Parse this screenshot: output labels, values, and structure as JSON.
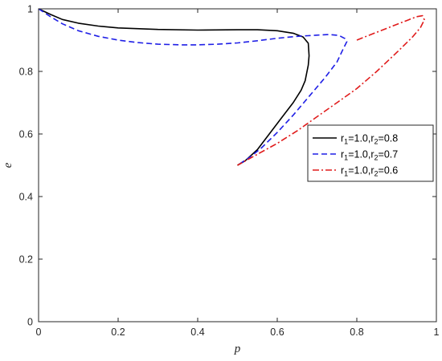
{
  "chart_data": {
    "type": "line",
    "xlabel": "p",
    "ylabel": "e",
    "xlim": [
      0,
      1
    ],
    "ylim": [
      0,
      1
    ],
    "xticks": [
      0,
      0.2,
      0.4,
      0.6,
      0.8,
      1
    ],
    "xtick_labels": [
      "0",
      "0.2",
      "0.4",
      "0.6",
      "0.8",
      "1"
    ],
    "yticks": [
      0,
      0.2,
      0.4,
      0.6,
      0.8,
      1
    ],
    "ytick_labels": [
      "0",
      "0.2",
      "0.4",
      "0.6",
      "0.8",
      "1"
    ],
    "grid": false,
    "legend_position": "right",
    "series": [
      {
        "name": "r1=1.0,r2=0.8",
        "legend": {
          "r": "r",
          "r1_sub": "1",
          "r1_val": "=1.0,",
          "r2_sub": "2",
          "r2_val": "=0.8"
        },
        "color": "#000000",
        "dash": "solid",
        "points": [
          [
            0,
            1
          ],
          [
            0.03,
            0.982
          ],
          [
            0.06,
            0.966
          ],
          [
            0.1,
            0.954
          ],
          [
            0.15,
            0.945
          ],
          [
            0.2,
            0.939
          ],
          [
            0.3,
            0.934
          ],
          [
            0.4,
            0.932
          ],
          [
            0.5,
            0.933
          ],
          [
            0.55,
            0.933
          ],
          [
            0.6,
            0.93
          ],
          [
            0.64,
            0.922
          ],
          [
            0.665,
            0.91
          ],
          [
            0.678,
            0.89
          ],
          [
            0.68,
            0.85
          ],
          [
            0.678,
            0.82
          ],
          [
            0.67,
            0.77
          ],
          [
            0.66,
            0.74
          ],
          [
            0.64,
            0.7
          ],
          [
            0.61,
            0.65
          ],
          [
            0.58,
            0.6
          ],
          [
            0.55,
            0.55
          ],
          [
            0.52,
            0.515
          ],
          [
            0.5,
            0.5
          ]
        ]
      },
      {
        "name": "r1=1.0,r2=0.7",
        "legend": {
          "r": "r",
          "r1_sub": "1",
          "r1_val": "=1.0,",
          "r2_sub": "2",
          "r2_val": "=0.7"
        },
        "color": "#1f1fe6",
        "dash": "7 4",
        "points": [
          [
            0,
            1
          ],
          [
            0.03,
            0.975
          ],
          [
            0.06,
            0.952
          ],
          [
            0.1,
            0.93
          ],
          [
            0.15,
            0.912
          ],
          [
            0.2,
            0.9
          ],
          [
            0.25,
            0.892
          ],
          [
            0.3,
            0.887
          ],
          [
            0.36,
            0.885
          ],
          [
            0.4,
            0.885
          ],
          [
            0.45,
            0.887
          ],
          [
            0.5,
            0.891
          ],
          [
            0.55,
            0.898
          ],
          [
            0.6,
            0.906
          ],
          [
            0.65,
            0.912
          ],
          [
            0.7,
            0.916
          ],
          [
            0.73,
            0.918
          ],
          [
            0.755,
            0.915
          ],
          [
            0.77,
            0.905
          ],
          [
            0.775,
            0.895
          ],
          [
            0.765,
            0.87
          ],
          [
            0.75,
            0.83
          ],
          [
            0.72,
            0.78
          ],
          [
            0.68,
            0.72
          ],
          [
            0.64,
            0.66
          ],
          [
            0.6,
            0.605
          ],
          [
            0.56,
            0.555
          ],
          [
            0.53,
            0.525
          ],
          [
            0.5,
            0.5
          ]
        ]
      },
      {
        "name": "r1=1.0,r2=0.6",
        "legend": {
          "r": "r",
          "r1_sub": "1",
          "r1_val": "=1.0,",
          "r2_sub": "2",
          "r2_val": "=0.6"
        },
        "color": "#e01b1b",
        "dash": "8 3 2 3",
        "points": [
          [
            0.8,
            0.9
          ],
          [
            0.83,
            0.915
          ],
          [
            0.86,
            0.93
          ],
          [
            0.9,
            0.95
          ],
          [
            0.93,
            0.965
          ],
          [
            0.95,
            0.975
          ],
          [
            0.965,
            0.978
          ],
          [
            0.97,
            0.965
          ],
          [
            0.96,
            0.94
          ],
          [
            0.94,
            0.91
          ],
          [
            0.9,
            0.86
          ],
          [
            0.85,
            0.8
          ],
          [
            0.8,
            0.745
          ],
          [
            0.75,
            0.7
          ],
          [
            0.7,
            0.655
          ],
          [
            0.65,
            0.61
          ],
          [
            0.6,
            0.57
          ],
          [
            0.55,
            0.535
          ],
          [
            0.5,
            0.5
          ]
        ]
      }
    ]
  }
}
